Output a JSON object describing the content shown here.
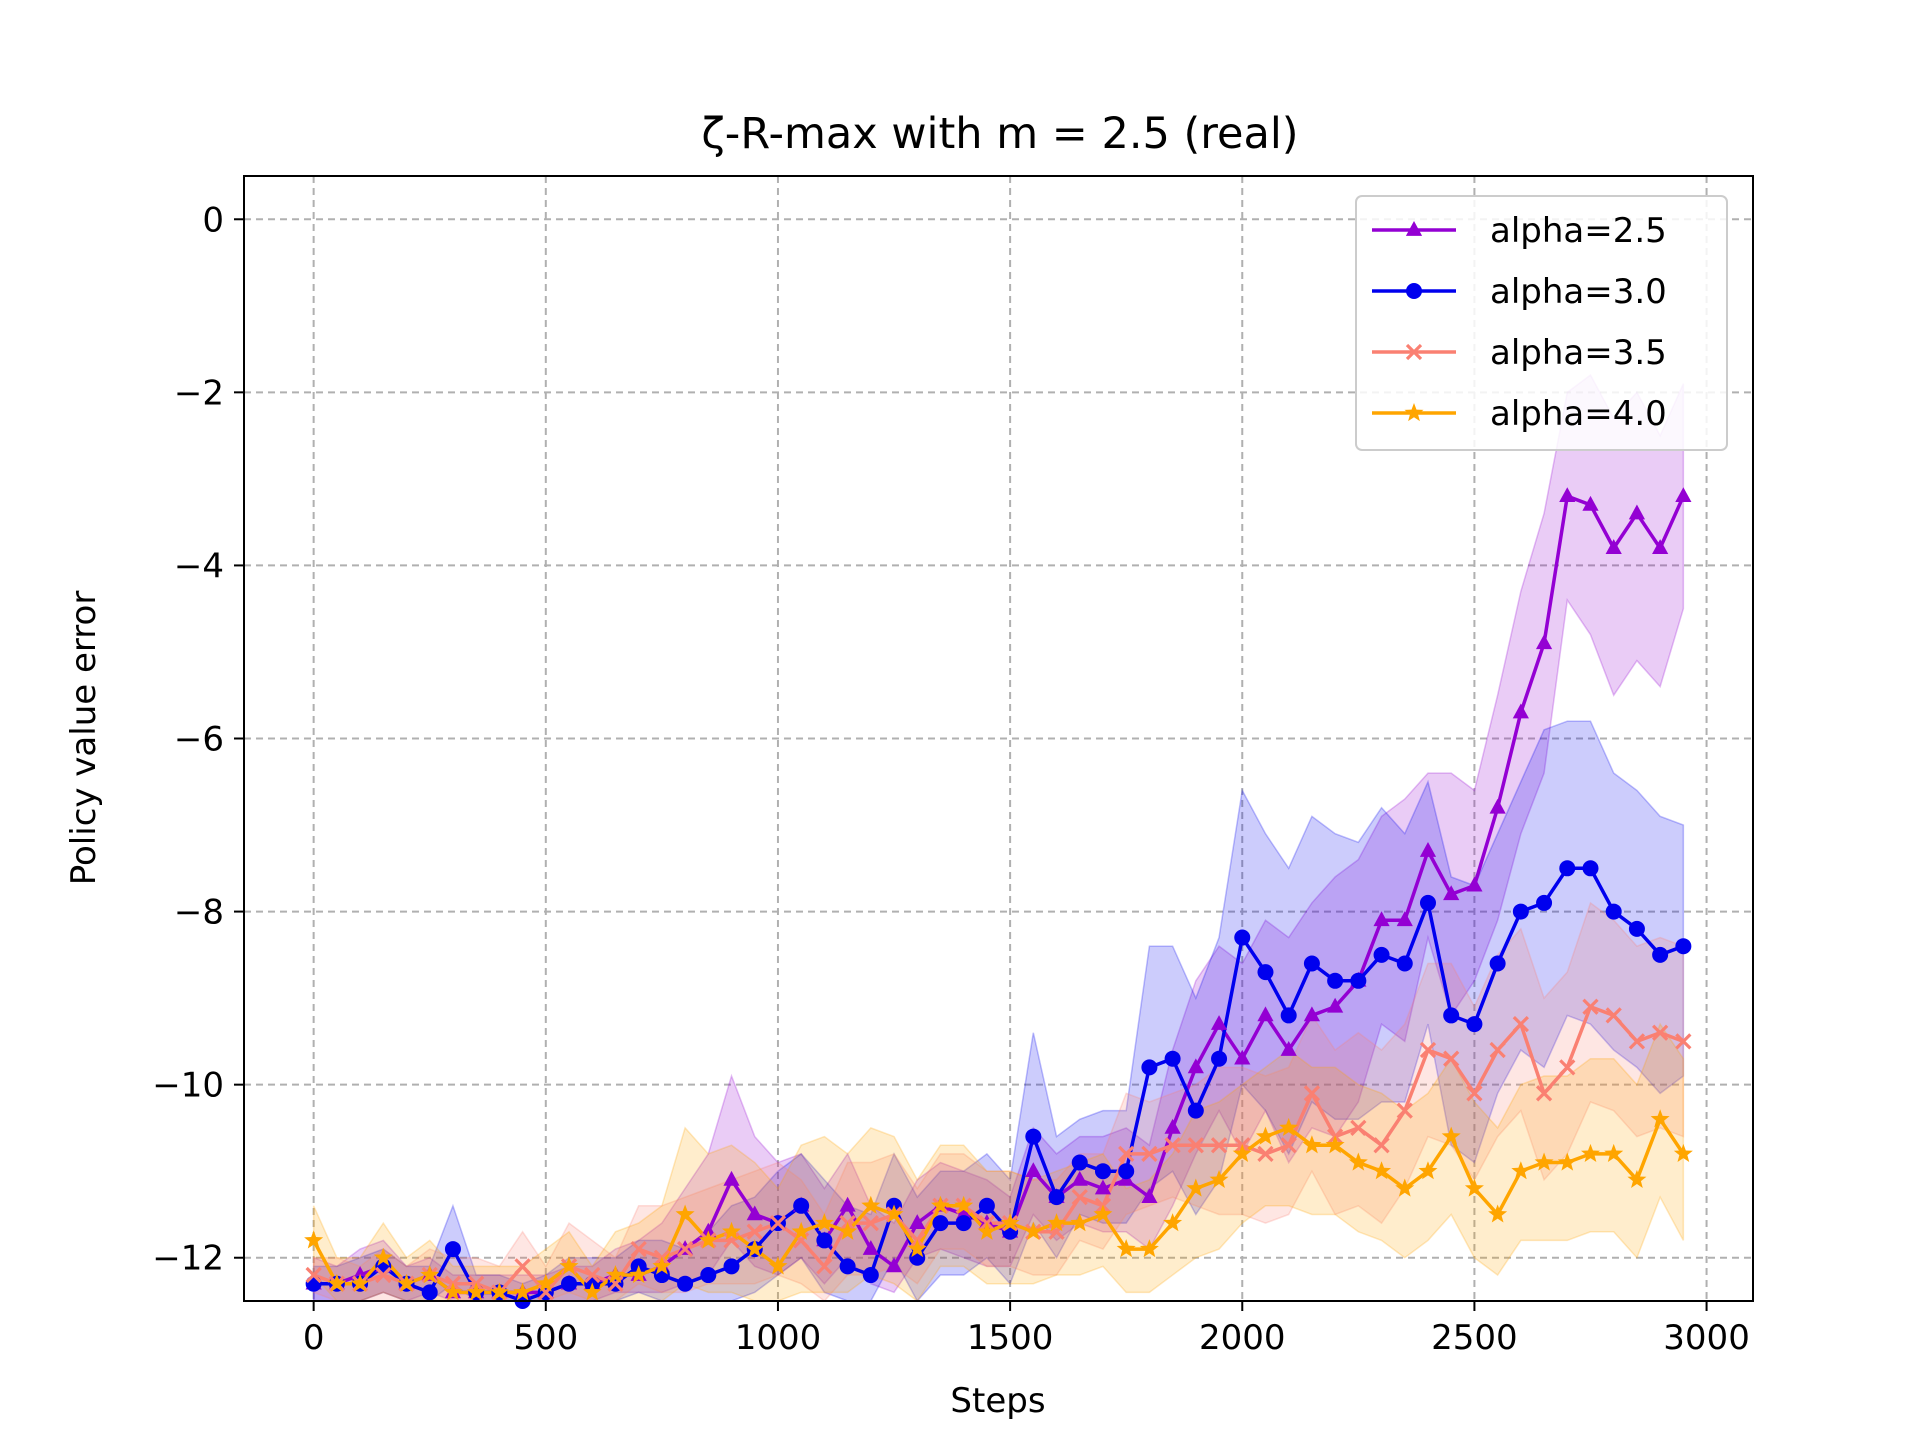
{
  "chart_data": {
    "type": "line",
    "title": "ζ-R-max with m = 2.5 (real)",
    "xlabel": "Steps",
    "ylabel": "Policy value error",
    "xlim": [
      -150,
      3100
    ],
    "ylim": [
      -12.5,
      0.5
    ],
    "xticks": [
      0,
      500,
      1000,
      1500,
      2000,
      2500,
      3000
    ],
    "yticks": [
      0,
      -2,
      -4,
      -6,
      -8,
      -10,
      -12
    ],
    "grid": true,
    "legend_position": "top-right",
    "x": [
      0,
      50,
      100,
      150,
      200,
      250,
      300,
      350,
      400,
      450,
      500,
      550,
      600,
      650,
      700,
      750,
      800,
      850,
      900,
      950,
      1000,
      1050,
      1100,
      1150,
      1200,
      1250,
      1300,
      1350,
      1400,
      1450,
      1500,
      1550,
      1600,
      1650,
      1700,
      1750,
      1800,
      1850,
      1900,
      1950,
      2000,
      2050,
      2100,
      2150,
      2200,
      2250,
      2300,
      2350,
      2400,
      2450,
      2500,
      2550,
      2600,
      2650,
      2700,
      2750,
      2800,
      2850,
      2900,
      2950
    ],
    "series": [
      {
        "name": "alpha=2.5",
        "color": "#9400D3",
        "marker": "triangle",
        "values": [
          -12.3,
          -12.3,
          -12.2,
          -12.1,
          -12.3,
          -12.2,
          -12.4,
          -12.4,
          -12.4,
          -12.4,
          -12.4,
          -12.3,
          -12.3,
          -12.2,
          -12.2,
          -12.1,
          -11.9,
          -11.7,
          -11.1,
          -11.5,
          -11.6,
          -11.4,
          -11.8,
          -11.4,
          -11.9,
          -12.1,
          -11.6,
          -11.4,
          -11.5,
          -11.6,
          -11.7,
          -11.0,
          -11.3,
          -11.1,
          -11.2,
          -11.1,
          -11.3,
          -10.5,
          -9.8,
          -9.3,
          -9.7,
          -9.2,
          -9.6,
          -9.2,
          -9.1,
          -8.8,
          -8.1,
          -8.1,
          -7.3,
          -7.8,
          -7.7,
          -6.8,
          -5.7,
          -4.9,
          -3.2,
          -3.3,
          -3.8,
          -3.4,
          -3.8,
          -3.2
        ],
        "upper": [
          -12.0,
          -12.1,
          -11.9,
          -11.8,
          -12.1,
          -12.0,
          -12.2,
          -12.2,
          -12.2,
          -12.2,
          -12.2,
          -12.1,
          -12.1,
          -11.9,
          -11.8,
          -11.6,
          -11.2,
          -10.8,
          -9.9,
          -10.6,
          -10.9,
          -10.8,
          -11.2,
          -10.8,
          -11.4,
          -11.6,
          -11.1,
          -10.9,
          -11.0,
          -11.1,
          -11.3,
          -10.5,
          -10.8,
          -10.6,
          -10.6,
          -10.5,
          -10.7,
          -9.6,
          -8.8,
          -8.4,
          -8.6,
          -8.1,
          -8.3,
          -7.9,
          -7.6,
          -7.4,
          -6.9,
          -6.7,
          -6.4,
          -6.4,
          -6.6,
          -5.5,
          -4.3,
          -3.4,
          -2.0,
          -1.8,
          -2.3,
          -2.0,
          -2.5,
          -1.9
        ],
        "lower": [
          -12.5,
          -12.5,
          -12.5,
          -12.4,
          -12.5,
          -12.4,
          -12.5,
          -12.5,
          -12.5,
          -12.5,
          -12.5,
          -12.5,
          -12.5,
          -12.4,
          -12.4,
          -12.4,
          -12.3,
          -12.2,
          -11.8,
          -12.1,
          -12.2,
          -12.0,
          -12.3,
          -12.0,
          -12.3,
          -12.4,
          -12.0,
          -11.9,
          -12.0,
          -12.1,
          -12.1,
          -11.5,
          -11.8,
          -11.6,
          -11.7,
          -11.7,
          -11.9,
          -11.4,
          -10.8,
          -10.3,
          -10.8,
          -10.3,
          -10.9,
          -10.5,
          -10.6,
          -10.2,
          -9.3,
          -9.5,
          -8.3,
          -9.2,
          -8.8,
          -8.1,
          -7.1,
          -6.4,
          -4.4,
          -4.8,
          -5.5,
          -5.1,
          -5.4,
          -4.5
        ]
      },
      {
        "name": "alpha=3.0",
        "color": "#0000EE",
        "marker": "circle",
        "values": [
          -12.3,
          -12.3,
          -12.3,
          -12.1,
          -12.3,
          -12.4,
          -11.9,
          -12.4,
          -12.4,
          -12.5,
          -12.4,
          -12.3,
          -12.3,
          -12.3,
          -12.1,
          -12.2,
          -12.3,
          -12.2,
          -12.1,
          -11.9,
          -11.6,
          -11.4,
          -11.8,
          -12.1,
          -12.2,
          -11.4,
          -12.0,
          -11.6,
          -11.6,
          -11.4,
          -11.7,
          -10.6,
          -11.3,
          -10.9,
          -11.0,
          -11.0,
          -9.8,
          -9.7,
          -10.3,
          -9.7,
          -8.3,
          -8.7,
          -9.2,
          -8.6,
          -8.8,
          -8.8,
          -8.5,
          -8.6,
          -7.9,
          -9.2,
          -9.3,
          -8.6,
          -8.0,
          -7.9,
          -7.5,
          -7.5,
          -8.0,
          -8.2,
          -8.5,
          -8.4
        ],
        "upper": [
          -12.1,
          -12.1,
          -12.0,
          -11.9,
          -12.1,
          -12.1,
          -11.4,
          -12.2,
          -12.2,
          -12.3,
          -12.2,
          -12.0,
          -12.0,
          -12.0,
          -11.8,
          -11.8,
          -11.9,
          -11.7,
          -11.4,
          -11.3,
          -11.0,
          -10.8,
          -11.1,
          -11.4,
          -11.5,
          -10.8,
          -11.3,
          -11.0,
          -11.0,
          -10.8,
          -11.1,
          -9.4,
          -10.6,
          -10.4,
          -10.3,
          -10.3,
          -8.4,
          -8.4,
          -9.0,
          -8.3,
          -6.6,
          -7.1,
          -7.5,
          -6.9,
          -7.1,
          -7.2,
          -6.8,
          -7.1,
          -6.5,
          -7.6,
          -7.7,
          -7.1,
          -6.5,
          -5.9,
          -5.8,
          -5.8,
          -6.4,
          -6.6,
          -6.9,
          -7.0
        ],
        "lower": [
          -12.5,
          -12.5,
          -12.5,
          -12.4,
          -12.5,
          -12.5,
          -12.3,
          -12.5,
          -12.5,
          -12.5,
          -12.5,
          -12.5,
          -12.5,
          -12.5,
          -12.4,
          -12.5,
          -12.5,
          -12.5,
          -12.5,
          -12.4,
          -12.2,
          -12.0,
          -12.4,
          -12.5,
          -12.5,
          -12.0,
          -12.5,
          -12.2,
          -12.2,
          -12.0,
          -12.3,
          -11.6,
          -12.0,
          -11.5,
          -11.6,
          -11.6,
          -11.2,
          -11.0,
          -11.5,
          -11.1,
          -10.0,
          -10.3,
          -10.8,
          -10.2,
          -10.4,
          -10.4,
          -10.2,
          -10.2,
          -9.3,
          -10.7,
          -10.9,
          -10.1,
          -9.6,
          -9.8,
          -9.2,
          -9.3,
          -9.6,
          -9.8,
          -10.1,
          -9.9
        ]
      },
      {
        "name": "alpha=3.5",
        "color": "#FA8072",
        "marker": "x",
        "values": [
          -12.2,
          -12.3,
          -12.3,
          -12.2,
          -12.3,
          -12.2,
          -12.3,
          -12.3,
          -12.4,
          -12.1,
          -12.4,
          -12.1,
          -12.2,
          -12.3,
          -11.9,
          -12.0,
          -11.9,
          -11.8,
          -11.8,
          -11.7,
          -11.6,
          -11.8,
          -12.1,
          -11.6,
          -11.6,
          -11.5,
          -11.8,
          -11.4,
          -11.4,
          -11.6,
          -11.6,
          -11.7,
          -11.7,
          -11.3,
          -11.4,
          -10.8,
          -10.8,
          -10.7,
          -10.7,
          -10.7,
          -10.7,
          -10.8,
          -10.7,
          -10.1,
          -10.6,
          -10.5,
          -10.7,
          -10.3,
          -9.6,
          -9.7,
          -10.1,
          -9.6,
          -9.3,
          -10.1,
          -9.8,
          -9.1,
          -9.2,
          -9.5,
          -9.4,
          -9.5
        ],
        "upper": [
          -12.0,
          -12.0,
          -12.1,
          -11.9,
          -12.1,
          -11.9,
          -12.0,
          -12.0,
          -12.1,
          -11.7,
          -12.1,
          -11.6,
          -11.8,
          -12.0,
          -11.4,
          -11.4,
          -11.3,
          -11.2,
          -11.1,
          -11.0,
          -10.9,
          -11.1,
          -11.5,
          -10.9,
          -10.9,
          -10.8,
          -11.2,
          -10.8,
          -10.8,
          -11.0,
          -11.0,
          -11.1,
          -11.1,
          -10.8,
          -10.8,
          -10.1,
          -10.2,
          -10.1,
          -10.0,
          -9.8,
          -9.8,
          -9.9,
          -9.8,
          -9.2,
          -9.6,
          -9.4,
          -9.6,
          -9.3,
          -8.6,
          -8.6,
          -9.1,
          -8.5,
          -8.2,
          -9.0,
          -8.7,
          -7.9,
          -8.1,
          -8.4,
          -8.3,
          -8.4
        ],
        "lower": [
          -12.4,
          -12.5,
          -12.5,
          -12.5,
          -12.5,
          -12.5,
          -12.5,
          -12.5,
          -12.5,
          -12.4,
          -12.5,
          -12.4,
          -12.5,
          -12.5,
          -12.3,
          -12.4,
          -12.4,
          -12.3,
          -12.3,
          -12.3,
          -12.2,
          -12.3,
          -12.5,
          -12.2,
          -12.2,
          -12.1,
          -12.3,
          -11.9,
          -11.9,
          -12.1,
          -12.1,
          -12.2,
          -12.2,
          -11.8,
          -11.9,
          -11.5,
          -11.4,
          -11.3,
          -11.4,
          -11.5,
          -11.5,
          -11.6,
          -11.5,
          -11.0,
          -11.5,
          -11.4,
          -11.6,
          -11.2,
          -10.6,
          -10.7,
          -11.1,
          -10.6,
          -10.3,
          -11.1,
          -10.8,
          -10.2,
          -10.3,
          -10.6,
          -10.5,
          -10.6
        ]
      },
      {
        "name": "alpha=4.0",
        "color": "#FFA500",
        "marker": "star",
        "values": [
          -11.8,
          -12.3,
          -12.3,
          -12.0,
          -12.3,
          -12.2,
          -12.4,
          -12.4,
          -12.4,
          -12.4,
          -12.3,
          -12.1,
          -12.4,
          -12.2,
          -12.2,
          -12.1,
          -11.5,
          -11.8,
          -11.7,
          -11.9,
          -12.1,
          -11.7,
          -11.6,
          -11.7,
          -11.4,
          -11.5,
          -11.9,
          -11.4,
          -11.4,
          -11.7,
          -11.6,
          -11.7,
          -11.6,
          -11.6,
          -11.5,
          -11.9,
          -11.9,
          -11.6,
          -11.2,
          -11.1,
          -10.8,
          -10.6,
          -10.5,
          -10.7,
          -10.7,
          -10.9,
          -11.0,
          -11.2,
          -11.0,
          -10.6,
          -11.2,
          -11.5,
          -11.0,
          -10.9,
          -10.9,
          -10.8,
          -10.8,
          -11.1,
          -10.4,
          -10.8
        ],
        "upper": [
          -11.4,
          -12.0,
          -12.0,
          -11.6,
          -12.0,
          -11.8,
          -12.1,
          -12.1,
          -12.1,
          -12.1,
          -11.9,
          -11.7,
          -12.1,
          -11.7,
          -11.6,
          -11.4,
          -10.5,
          -10.8,
          -10.7,
          -10.9,
          -11.2,
          -10.7,
          -10.6,
          -10.8,
          -10.5,
          -10.6,
          -11.1,
          -10.7,
          -10.7,
          -11.0,
          -11.0,
          -11.1,
          -11.0,
          -10.9,
          -10.8,
          -11.2,
          -11.1,
          -10.8,
          -10.3,
          -10.2,
          -10.0,
          -9.8,
          -9.6,
          -9.8,
          -9.8,
          -10.0,
          -10.1,
          -10.3,
          -10.1,
          -9.7,
          -10.2,
          -10.5,
          -10.0,
          -9.9,
          -9.9,
          -9.7,
          -9.7,
          -10.0,
          -9.3,
          -9.7
        ],
        "lower": [
          -12.2,
          -12.5,
          -12.5,
          -12.4,
          -12.5,
          -12.5,
          -12.5,
          -12.5,
          -12.5,
          -12.5,
          -12.5,
          -12.5,
          -12.5,
          -12.5,
          -12.5,
          -12.5,
          -12.3,
          -12.4,
          -12.4,
          -12.5,
          -12.5,
          -12.4,
          -12.4,
          -12.4,
          -12.2,
          -12.3,
          -12.5,
          -12.1,
          -12.1,
          -12.3,
          -12.3,
          -12.3,
          -12.2,
          -12.2,
          -12.1,
          -12.4,
          -12.4,
          -12.2,
          -12.0,
          -11.9,
          -11.6,
          -11.4,
          -11.4,
          -11.5,
          -11.5,
          -11.7,
          -11.8,
          -12.0,
          -11.8,
          -11.5,
          -12.0,
          -12.2,
          -11.8,
          -11.8,
          -11.8,
          -11.7,
          -11.7,
          -12.0,
          -11.3,
          -11.8
        ]
      }
    ]
  }
}
